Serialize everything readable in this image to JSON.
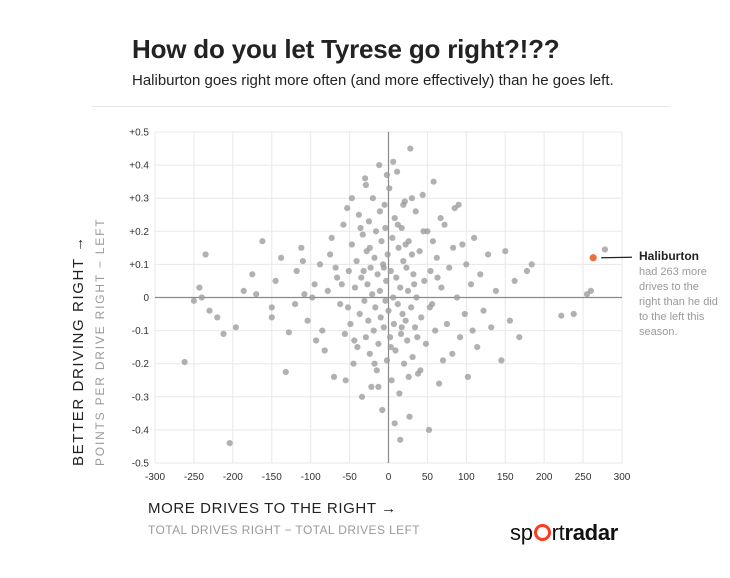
{
  "header": {
    "title": "How do you let Tyrese go right?!??",
    "subtitle": "Haliburton goes right more often (and more effectively) than he goes left."
  },
  "axes": {
    "y_main": "BETTER DRIVING RIGHT →",
    "y_sub": "POINTS PER DRIVE RIGHT − LEFT",
    "x_main": "MORE DRIVES TO THE RIGHT →",
    "x_sub": "TOTAL DRIVES RIGHT − TOTAL DRIVES LEFT"
  },
  "annotation": {
    "name": "Haliburton",
    "text": "had 263 more drives to the right than he did to the left this season."
  },
  "logo": {
    "part1": "sp",
    "part2": "rt",
    "part3": "radar"
  },
  "colors": {
    "points": "#9e9e9e",
    "highlight": "#e8703a",
    "axis": "#8a8a8a",
    "grid": "#e8e8e8"
  },
  "chart_data": {
    "type": "scatter",
    "xlim": [
      -300,
      300
    ],
    "ylim": [
      -0.5,
      0.5
    ],
    "x_ticks": [
      -300,
      -250,
      -200,
      -150,
      -100,
      -50,
      0,
      50,
      100,
      150,
      200,
      250,
      300
    ],
    "y_ticks": [
      -0.5,
      -0.4,
      -0.3,
      -0.2,
      -0.1,
      0,
      0.1,
      0.2,
      0.3,
      0.4,
      0.5
    ],
    "x_tick_labels": [
      "-300",
      "-250",
      "-200",
      "-150",
      "-100",
      "-50",
      "0",
      "50",
      "100",
      "150",
      "200",
      "250",
      "300"
    ],
    "y_tick_labels": [
      "-0.5",
      "-0.4",
      "-0.3",
      "-0.2",
      "-0.1",
      "0",
      "+0.1",
      "+0.2",
      "+0.3",
      "+0.4",
      "+0.5"
    ],
    "grid": true,
    "highlight": {
      "name": "Haliburton",
      "x": 263,
      "y": 0.12
    },
    "points": [
      [
        -262,
        -0.195
      ],
      [
        -250,
        -0.01
      ],
      [
        -243,
        0.03
      ],
      [
        -235,
        0.13
      ],
      [
        -230,
        -0.04
      ],
      [
        -212,
        -0.11
      ],
      [
        -204,
        -0.44
      ],
      [
        -196,
        -0.09
      ],
      [
        -175,
        0.07
      ],
      [
        -170,
        0.01
      ],
      [
        -162,
        0.17
      ],
      [
        -150,
        -0.03
      ],
      [
        -138,
        0.12
      ],
      [
        -132,
        -0.225
      ],
      [
        -128,
        -0.105
      ],
      [
        -118,
        0.08
      ],
      [
        -112,
        0.15
      ],
      [
        -108,
        0.01
      ],
      [
        -104,
        -0.07
      ],
      [
        -98,
        0.0
      ],
      [
        -93,
        -0.13
      ],
      [
        -88,
        0.1
      ],
      [
        -82,
        -0.16
      ],
      [
        -78,
        0.02
      ],
      [
        -73,
        0.18
      ],
      [
        -70,
        -0.24
      ],
      [
        -66,
        0.06
      ],
      [
        -62,
        -0.02
      ],
      [
        -58,
        0.22
      ],
      [
        -56,
        -0.11
      ],
      [
        -53,
        0.27
      ],
      [
        -51,
        0.08
      ],
      [
        -49,
        -0.08
      ],
      [
        -47,
        0.16
      ],
      [
        -45,
        -0.2
      ],
      [
        -43,
        0.03
      ],
      [
        -41,
        0.11
      ],
      [
        -40,
        -0.15
      ],
      [
        -38,
        0.25
      ],
      [
        -37,
        -0.05
      ],
      [
        -35,
        0.06
      ],
      [
        -34,
        -0.3
      ],
      [
        -33,
        0.19
      ],
      [
        -31,
        -0.01
      ],
      [
        -30,
        0.36
      ],
      [
        -29,
        -0.12
      ],
      [
        -28,
        0.14
      ],
      [
        -27,
        0.04
      ],
      [
        -26,
        -0.07
      ],
      [
        -25,
        0.23
      ],
      [
        -24,
        -0.17
      ],
      [
        -23,
        0.09
      ],
      [
        -22,
        -0.27
      ],
      [
        -21,
        0.01
      ],
      [
        -20,
        0.3
      ],
      [
        -19,
        -0.1
      ],
      [
        -18,
        0.12
      ],
      [
        -17,
        -0.03
      ],
      [
        -16,
        0.2
      ],
      [
        -15,
        -0.22
      ],
      [
        -14,
        0.07
      ],
      [
        -13,
        -0.14
      ],
      [
        -12,
        0.4
      ],
      [
        -11,
        0.02
      ],
      [
        -10,
        -0.06
      ],
      [
        -9,
        0.17
      ],
      [
        -8,
        -0.34
      ],
      [
        -7,
        0.1
      ],
      [
        -6,
        -0.09
      ],
      [
        -5,
        0.28
      ],
      [
        -4,
        -0.01
      ],
      [
        -3,
        0.05
      ],
      [
        -2,
        -0.19
      ],
      [
        -1,
        0.13
      ],
      [
        0,
        -0.04
      ],
      [
        1,
        0.33
      ],
      [
        2,
        -0.12
      ],
      [
        3,
        0.08
      ],
      [
        4,
        -0.25
      ],
      [
        5,
        0.18
      ],
      [
        6,
        0.0
      ],
      [
        7,
        -0.08
      ],
      [
        8,
        0.24
      ],
      [
        9,
        -0.16
      ],
      [
        10,
        0.06
      ],
      [
        11,
        0.38
      ],
      [
        12,
        -0.02
      ],
      [
        13,
        0.15
      ],
      [
        14,
        -0.29
      ],
      [
        15,
        0.03
      ],
      [
        16,
        -0.11
      ],
      [
        17,
        0.21
      ],
      [
        18,
        -0.05
      ],
      [
        19,
        0.11
      ],
      [
        20,
        -0.2
      ],
      [
        21,
        0.29
      ],
      [
        22,
        -0.07
      ],
      [
        23,
        0.09
      ],
      [
        24,
        -0.13
      ],
      [
        25,
        0.02
      ],
      [
        26,
        0.17
      ],
      [
        27,
        -0.36
      ],
      [
        28,
        0.45
      ],
      [
        29,
        -0.03
      ],
      [
        30,
        0.13
      ],
      [
        31,
        -0.18
      ],
      [
        32,
        0.07
      ],
      [
        34,
        -0.09
      ],
      [
        35,
        0.26
      ],
      [
        36,
        0.0
      ],
      [
        38,
        -0.23
      ],
      [
        40,
        0.14
      ],
      [
        42,
        -0.06
      ],
      [
        44,
        0.31
      ],
      [
        46,
        0.05
      ],
      [
        48,
        -0.14
      ],
      [
        50,
        0.2
      ],
      [
        52,
        -0.4
      ],
      [
        54,
        0.08
      ],
      [
        56,
        -0.02
      ],
      [
        58,
        0.35
      ],
      [
        60,
        -0.1
      ],
      [
        62,
        0.12
      ],
      [
        65,
        -0.26
      ],
      [
        68,
        0.03
      ],
      [
        72,
        0.22
      ],
      [
        75,
        -0.08
      ],
      [
        78,
        0.09
      ],
      [
        82,
        -0.17
      ],
      [
        85,
        0.27
      ],
      [
        88,
        0.0
      ],
      [
        92,
        -0.12
      ],
      [
        95,
        0.16
      ],
      [
        98,
        -0.05
      ],
      [
        100,
        0.1
      ],
      [
        102,
        -0.24
      ],
      [
        106,
        0.04
      ],
      [
        110,
        0.18
      ],
      [
        114,
        -0.15
      ],
      [
        118,
        0.07
      ],
      [
        122,
        -0.04
      ],
      [
        128,
        0.13
      ],
      [
        132,
        -0.09
      ],
      [
        138,
        0.02
      ],
      [
        145,
        -0.19
      ],
      [
        150,
        0.14
      ],
      [
        156,
        -0.07
      ],
      [
        162,
        0.05
      ],
      [
        168,
        -0.12
      ],
      [
        178,
        0.08
      ],
      [
        184,
        0.1
      ],
      [
        222,
        -0.055
      ],
      [
        238,
        -0.05
      ],
      [
        255,
        0.01
      ],
      [
        260,
        0.02
      ],
      [
        278,
        0.145
      ],
      [
        -240,
        0.0
      ],
      [
        -220,
        -0.06
      ],
      [
        -186,
        0.02
      ],
      [
        -145,
        0.05
      ],
      [
        -120,
        -0.02
      ],
      [
        -95,
        0.04
      ],
      [
        -85,
        -0.1
      ],
      [
        -75,
        0.13
      ],
      [
        -68,
        0.09
      ],
      [
        -60,
        0.04
      ],
      [
        -52,
        -0.03
      ],
      [
        -44,
        -0.13
      ],
      [
        -36,
        0.21
      ],
      [
        -32,
        0.08
      ],
      [
        -24,
        0.15
      ],
      [
        -18,
        -0.2
      ],
      [
        -11,
        0.26
      ],
      [
        -6,
        0.09
      ],
      [
        -2,
        0.37
      ],
      [
        3,
        -0.15
      ],
      [
        8,
        -0.38
      ],
      [
        12,
        0.22
      ],
      [
        17,
        -0.09
      ],
      [
        22,
        0.16
      ],
      [
        26,
        -0.24
      ],
      [
        33,
        0.04
      ],
      [
        37,
        -0.12
      ],
      [
        45,
        0.2
      ],
      [
        53,
        -0.03
      ],
      [
        63,
        0.06
      ],
      [
        70,
        -0.19
      ],
      [
        83,
        0.15
      ],
      [
        -150,
        -0.06
      ],
      [
        -110,
        0.11
      ],
      [
        -55,
        -0.25
      ],
      [
        -47,
        0.3
      ],
      [
        -29,
        0.34
      ],
      [
        -13,
        -0.27
      ],
      [
        -4,
        0.21
      ],
      [
        6,
        0.41
      ],
      [
        15,
        -0.43
      ],
      [
        19,
        0.28
      ],
      [
        30,
        0.3
      ],
      [
        41,
        -0.22
      ],
      [
        57,
        0.17
      ],
      [
        67,
        0.24
      ],
      [
        90,
        0.28
      ],
      [
        108,
        -0.1
      ]
    ]
  }
}
